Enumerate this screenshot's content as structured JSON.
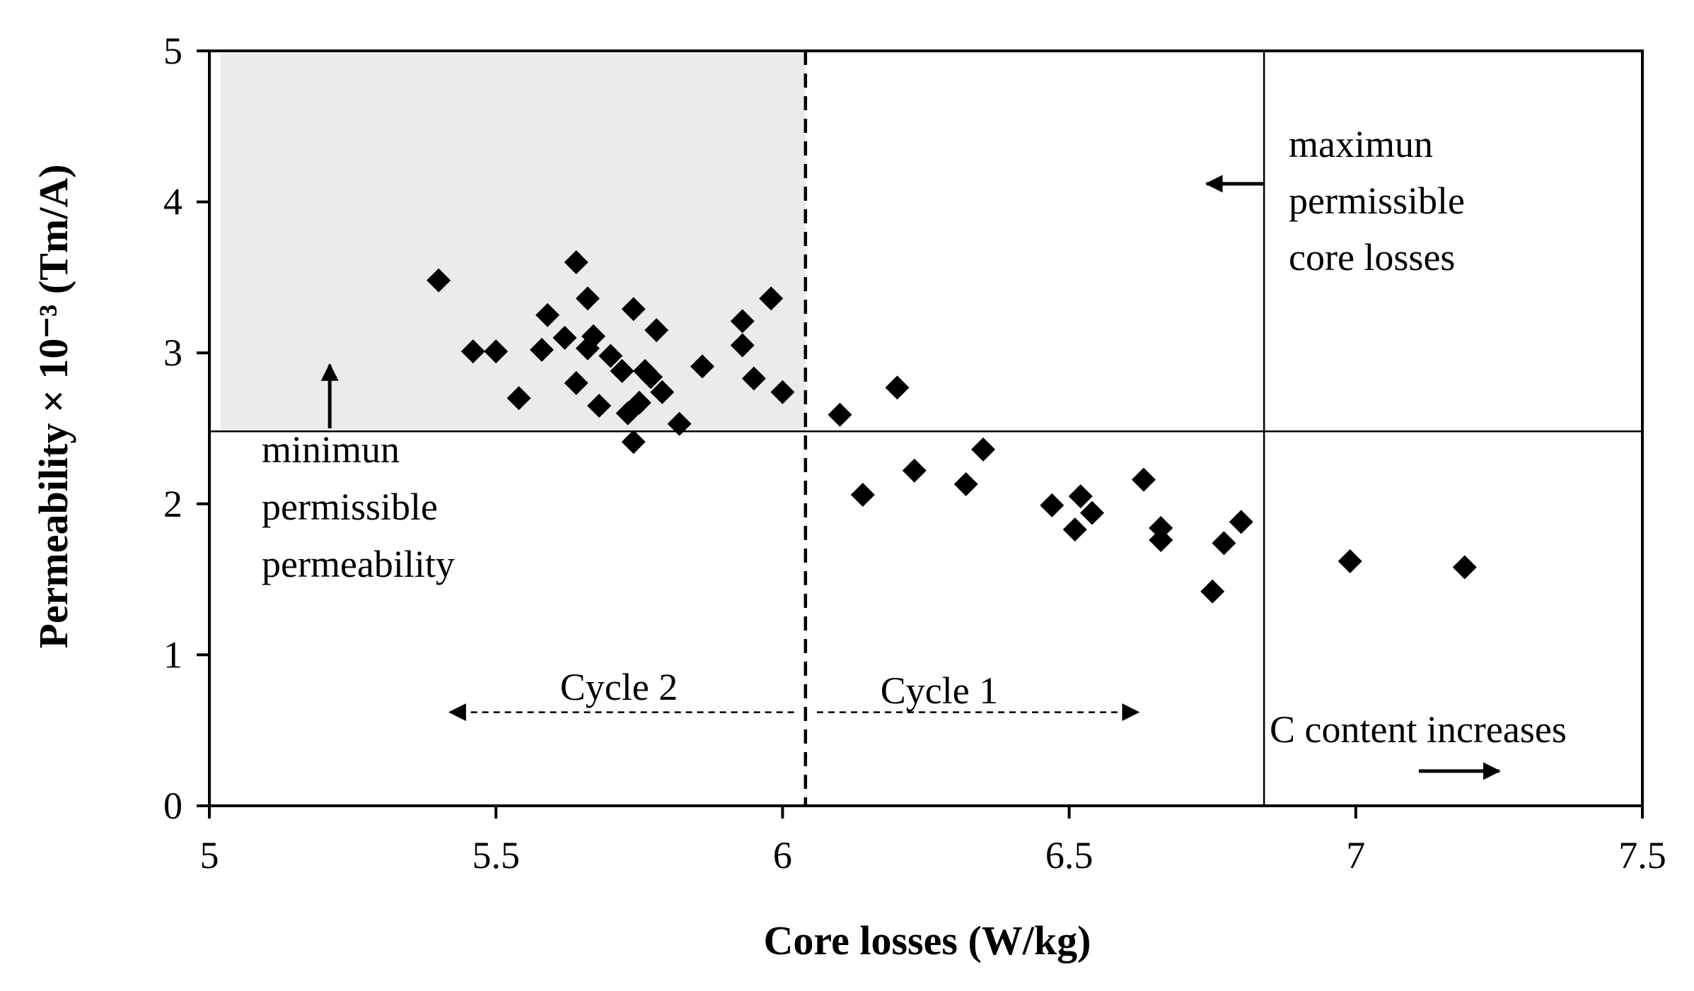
{
  "chart_data": {
    "type": "scatter",
    "title": "",
    "xlabel": "Core losses (W/kg)",
    "ylabel": "Permeability × 10⁻³ (Tm/A)",
    "xlim": [
      5,
      7.5
    ],
    "ylim": [
      0,
      5
    ],
    "xticks": [
      "5",
      "5.5",
      "6",
      "6.5",
      "7",
      "7.5"
    ],
    "yticks": [
      "0",
      "1",
      "2",
      "3",
      "4",
      "5"
    ],
    "grid": false,
    "marker": "diamond",
    "colors": {
      "marker": "#000000",
      "region": "#ebebeb"
    },
    "min_permeability": 2.48,
    "max_core_losses": 6.84,
    "cycle_divider": 6.04,
    "annotations": {
      "max_core_losses": [
        "maximun",
        "permissible",
        "core losses"
      ],
      "min_permeability": [
        "minimun",
        "permissible",
        "permeability"
      ],
      "cycle2": "Cycle 2",
      "cycle1": "Cycle 1",
      "c_content": "C content increases"
    },
    "points": [
      {
        "x": 5.4,
        "y": 3.48
      },
      {
        "x": 5.46,
        "y": 3.01
      },
      {
        "x": 5.5,
        "y": 3.01
      },
      {
        "x": 5.54,
        "y": 2.7
      },
      {
        "x": 5.58,
        "y": 3.02
      },
      {
        "x": 5.59,
        "y": 3.25
      },
      {
        "x": 5.62,
        "y": 3.1
      },
      {
        "x": 5.64,
        "y": 3.6
      },
      {
        "x": 5.64,
        "y": 2.8
      },
      {
        "x": 5.66,
        "y": 3.36
      },
      {
        "x": 5.66,
        "y": 3.03
      },
      {
        "x": 5.67,
        "y": 3.11
      },
      {
        "x": 5.68,
        "y": 2.65
      },
      {
        "x": 5.7,
        "y": 2.98
      },
      {
        "x": 5.72,
        "y": 2.88
      },
      {
        "x": 5.73,
        "y": 2.6
      },
      {
        "x": 5.74,
        "y": 3.29
      },
      {
        "x": 5.74,
        "y": 2.41
      },
      {
        "x": 5.75,
        "y": 2.67
      },
      {
        "x": 5.76,
        "y": 2.88
      },
      {
        "x": 5.77,
        "y": 2.84
      },
      {
        "x": 5.78,
        "y": 3.15
      },
      {
        "x": 5.79,
        "y": 2.74
      },
      {
        "x": 5.82,
        "y": 2.53
      },
      {
        "x": 5.86,
        "y": 2.91
      },
      {
        "x": 5.93,
        "y": 3.21
      },
      {
        "x": 5.93,
        "y": 3.05
      },
      {
        "x": 5.95,
        "y": 2.83
      },
      {
        "x": 5.98,
        "y": 3.36
      },
      {
        "x": 6.0,
        "y": 2.74
      },
      {
        "x": 6.1,
        "y": 2.59
      },
      {
        "x": 6.14,
        "y": 2.06
      },
      {
        "x": 6.2,
        "y": 2.77
      },
      {
        "x": 6.23,
        "y": 2.22
      },
      {
        "x": 6.32,
        "y": 2.13
      },
      {
        "x": 6.35,
        "y": 2.36
      },
      {
        "x": 6.47,
        "y": 1.99
      },
      {
        "x": 6.51,
        "y": 1.83
      },
      {
        "x": 6.52,
        "y": 2.05
      },
      {
        "x": 6.54,
        "y": 1.94
      },
      {
        "x": 6.63,
        "y": 2.16
      },
      {
        "x": 6.66,
        "y": 1.84
      },
      {
        "x": 6.66,
        "y": 1.76
      },
      {
        "x": 6.75,
        "y": 1.42
      },
      {
        "x": 6.77,
        "y": 1.74
      },
      {
        "x": 6.8,
        "y": 1.88
      },
      {
        "x": 6.99,
        "y": 1.62
      },
      {
        "x": 7.19,
        "y": 1.58
      }
    ]
  }
}
